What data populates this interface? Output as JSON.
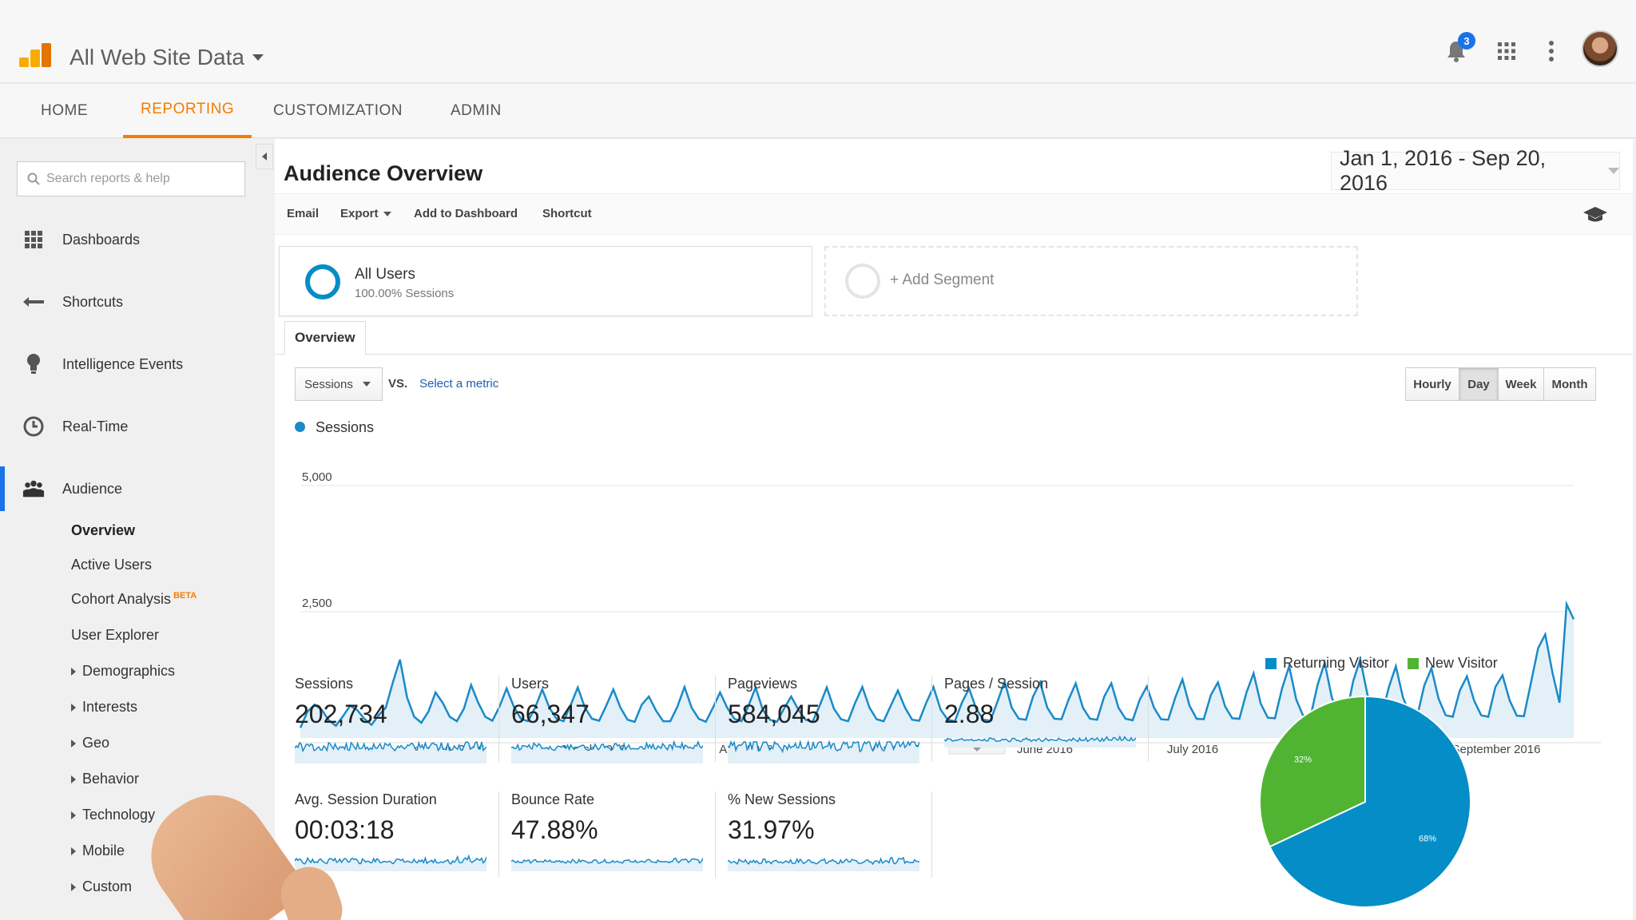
{
  "header": {
    "title": "All Web Site Data",
    "notification_count": "3"
  },
  "nav": {
    "tabs": [
      "HOME",
      "REPORTING",
      "CUSTOMIZATION",
      "ADMIN"
    ],
    "active": "REPORTING"
  },
  "sidebar": {
    "search_placeholder": "Search reports & help",
    "items": [
      "Dashboards",
      "Shortcuts",
      "Intelligence Events",
      "Real-Time",
      "Audience"
    ],
    "active": "Audience",
    "subitems": [
      "Overview",
      "Active Users",
      "Cohort Analysis",
      "User Explorer",
      "Demographics",
      "Interests",
      "Geo",
      "Behavior",
      "Technology",
      "Mobile",
      "Custom"
    ],
    "beta_label": "BETA"
  },
  "main": {
    "title": "Audience Overview",
    "date_range": "Jan 1, 2016 - Sep 20, 2016",
    "toolbar": [
      "Email",
      "Export",
      "Add to Dashboard",
      "Shortcut"
    ],
    "segment": {
      "title": "All Users",
      "sub": "100.00% Sessions"
    },
    "add_segment": "+ Add Segment",
    "tab": "Overview",
    "metric_select": "Sessions",
    "vs": "VS.",
    "select_metric": "Select a metric",
    "periods": [
      "Hourly",
      "Day",
      "Week",
      "Month"
    ],
    "active_period": "Day",
    "legend": "Sessions"
  },
  "chart_data": {
    "type": "line",
    "title": "",
    "series": [
      {
        "name": "Sessions",
        "values": [
          200,
          520,
          660,
          560,
          350,
          240,
          430,
          640,
          550,
          380,
          260,
          450,
          600,
          1100,
          1550,
          800,
          420,
          300,
          520,
          900,
          700,
          420,
          330,
          580,
          1050,
          700,
          420,
          340,
          620,
          980,
          620,
          380,
          330,
          600,
          960,
          600,
          380,
          330,
          650,
          1000,
          600,
          380,
          340,
          640,
          960,
          600,
          360,
          320,
          660,
          820,
          540,
          330,
          330,
          620,
          1010,
          600,
          380,
          320,
          600,
          900,
          600,
          380,
          330,
          640,
          1000,
          560,
          360,
          320,
          580,
          820,
          560,
          360,
          320,
          640,
          1000,
          580,
          370,
          330,
          700,
          1010,
          600,
          370,
          330,
          640,
          940,
          600,
          360,
          340,
          700,
          1010,
          560,
          360,
          330,
          700,
          980,
          580,
          360,
          340,
          720,
          1120,
          600,
          380,
          360,
          820,
          1100,
          600,
          380,
          370,
          760,
          1080,
          600,
          380,
          360,
          820,
          1080,
          600,
          380,
          350,
          760,
          1020,
          600,
          370,
          360,
          800,
          1160,
          640,
          380,
          370,
          850,
          1100,
          620,
          390,
          380,
          900,
          1280,
          680,
          400,
          390,
          980,
          1420,
          760,
          430,
          420,
          1050,
          1490,
          800,
          450,
          430,
          1120,
          1560,
          860,
          470,
          430,
          1000,
          1420,
          800,
          460,
          430,
          1040,
          1380,
          780,
          450,
          420,
          940,
          1220,
          740,
          450,
          420,
          1010,
          1240,
          740,
          440,
          430,
          1100,
          1780,
          2050,
          1300,
          700,
          2650,
          2350
        ]
      }
    ],
    "x_tick_labels": [
      "February 2016",
      "March 2016",
      "April 2016",
      "May 2016",
      "June 2016",
      "July 2016",
      "August 2016",
      "September 2016"
    ],
    "y_tick_labels": [
      "5,000",
      "2,500"
    ],
    "ylim": [
      0,
      5000
    ],
    "grid": true
  },
  "stats": [
    {
      "label": "Sessions",
      "value": "202,734"
    },
    {
      "label": "Users",
      "value": "66,347"
    },
    {
      "label": "Pageviews",
      "value": "584,045"
    },
    {
      "label": "Pages / Session",
      "value": "2.88"
    },
    {
      "label": "Avg. Session Duration",
      "value": "00:03:18"
    },
    {
      "label": "Bounce Rate",
      "value": "47.88%"
    },
    {
      "label": "% New Sessions",
      "value": "31.97%"
    }
  ],
  "pie": {
    "type": "pie",
    "labels": [
      "Returning Visitor",
      "New Visitor"
    ],
    "values": [
      68,
      32
    ],
    "slice_labels": [
      "68%",
      "32%"
    ],
    "colors": [
      "#058dc7",
      "#50b432"
    ]
  },
  "colors": {
    "accent": "#f57c00",
    "line": "#1a8ac8",
    "link": "#1a5fb4"
  }
}
